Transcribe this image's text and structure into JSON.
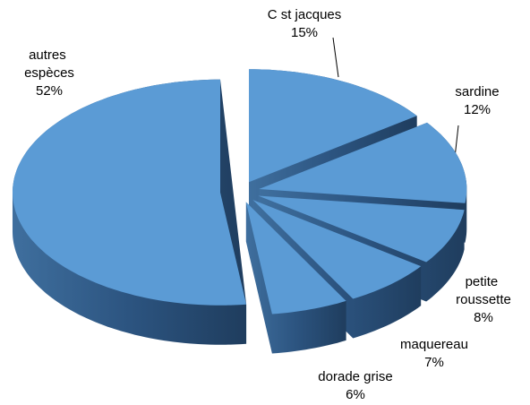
{
  "chart_data": {
    "type": "pie",
    "categories": [
      "C st jacques",
      "sardine",
      "petite roussette",
      "maquereau",
      "dorade grise",
      "autres espèces"
    ],
    "values": [
      15,
      12,
      8,
      7,
      6,
      52
    ],
    "value_labels": [
      "15%",
      "12%",
      "8%",
      "7%",
      "6%",
      "52%"
    ],
    "color": "#5b9bd5"
  }
}
